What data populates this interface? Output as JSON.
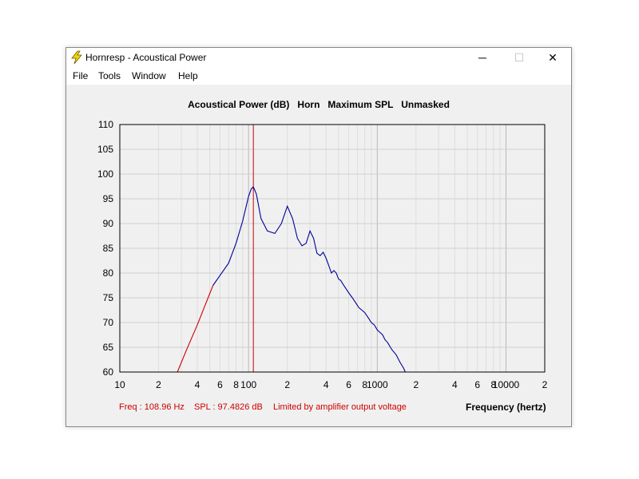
{
  "window": {
    "title": "Hornresp - Acoustical Power",
    "controls": {
      "minimize": "─",
      "maximize": "☐",
      "close": "✕"
    }
  },
  "menu": {
    "items": [
      "File",
      "Tools",
      "Window",
      "Help"
    ]
  },
  "header": {
    "title": "Acoustical Power (dB)   Horn   Maximum SPL   Unmasked"
  },
  "status": {
    "freq": "Freq : 108.96 Hz",
    "spl": "SPL : 97.4826 dB",
    "note": "Limited by amplifier output voltage"
  },
  "colors": {
    "limited_trace": "#cc0000",
    "normal_trace": "#000099",
    "cursor": "#cc0000",
    "grid": "#cfcfcf"
  },
  "chart_data": {
    "type": "line",
    "title": "Acoustical Power (dB)",
    "xlabel": "Frequency (hertz)",
    "ylabel": "",
    "x_scale": "log",
    "xlim": [
      10,
      20000
    ],
    "ylim": [
      60,
      110
    ],
    "grid": true,
    "x_ticks": [
      {
        "v": 10,
        "label": "10"
      },
      {
        "v": 20,
        "label": "2"
      },
      {
        "v": 40,
        "label": "4"
      },
      {
        "v": 60,
        "label": "6"
      },
      {
        "v": 80,
        "label": "8"
      },
      {
        "v": 100,
        "label": "100"
      },
      {
        "v": 200,
        "label": "2"
      },
      {
        "v": 400,
        "label": "4"
      },
      {
        "v": 600,
        "label": "6"
      },
      {
        "v": 800,
        "label": "8"
      },
      {
        "v": 1000,
        "label": "1000"
      },
      {
        "v": 2000,
        "label": "2"
      },
      {
        "v": 4000,
        "label": "4"
      },
      {
        "v": 6000,
        "label": "6"
      },
      {
        "v": 8000,
        "label": "8"
      },
      {
        "v": 10000,
        "label": "10000"
      },
      {
        "v": 20000,
        "label": "2"
      }
    ],
    "y_ticks": [
      110,
      105,
      100,
      95,
      90,
      85,
      80,
      75,
      70,
      65,
      60
    ],
    "cursor": {
      "x": 108.96,
      "y": 97.4826
    },
    "series": [
      {
        "limited": true,
        "x": [
          28,
          33,
          40,
          46,
          53
        ],
        "y": [
          60,
          64.5,
          69.5,
          73.5,
          77.5
        ]
      },
      {
        "limited": false,
        "x": [
          53,
          60,
          70,
          80,
          90,
          100,
          105,
          109,
          115,
          125,
          140,
          160,
          180,
          200,
          220,
          240,
          260,
          280,
          300,
          320,
          340,
          360,
          380,
          400,
          420,
          440,
          460,
          480,
          500,
          520,
          540,
          560,
          600,
          640,
          680,
          720,
          760,
          800,
          850,
          900,
          950,
          1000,
          1050,
          1100,
          1150,
          1200,
          1300,
          1400,
          1500,
          1600,
          1650
        ],
        "y": [
          77.5,
          79.5,
          82,
          86,
          90.5,
          95.5,
          97,
          97.4,
          96,
          91,
          88.5,
          88,
          90,
          93.5,
          91,
          87,
          85.5,
          86,
          88.5,
          87,
          84,
          83.5,
          84.2,
          83,
          81.5,
          80,
          80.5,
          80,
          78.8,
          78.5,
          77.8,
          77.2,
          76,
          75,
          74,
          73,
          72.5,
          72,
          71,
          70,
          69.5,
          68.5,
          68,
          67.5,
          66.5,
          66,
          64.5,
          63.5,
          62,
          60.8,
          60
        ]
      }
    ]
  }
}
